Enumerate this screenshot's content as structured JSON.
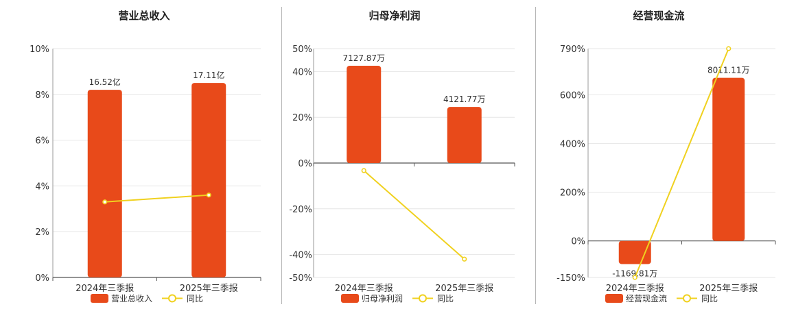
{
  "colors": {
    "bar": "#e84a1a",
    "line": "#f0d11f",
    "grid": "#e6e6e6",
    "axis": "#555555",
    "text": "#333333"
  },
  "chart_data": [
    {
      "type": "bar",
      "title": "营业总收入",
      "categories": [
        "2024年三季报",
        "2025年三季报"
      ],
      "series": [
        {
          "name": "营业总收入",
          "kind": "bar",
          "values": [
            8.2,
            8.5
          ],
          "labels": [
            "16.52亿",
            "17.11亿"
          ]
        },
        {
          "name": "同比",
          "kind": "line",
          "values": [
            3.3,
            3.6
          ]
        }
      ],
      "ylim": [
        0,
        10
      ],
      "yticks": [
        "10%",
        "8%",
        "6%",
        "4%",
        "2%",
        "0%"
      ],
      "ytick_values": [
        10,
        8,
        6,
        4,
        2,
        0
      ],
      "grid": true,
      "legend_position": "bottom"
    },
    {
      "type": "bar",
      "title": "归母净利润",
      "categories": [
        "2024年三季报",
        "2025年三季报"
      ],
      "series": [
        {
          "name": "归母净利润",
          "kind": "bar",
          "values": [
            42.5,
            24.5
          ],
          "labels": [
            "7127.87万",
            "4121.77万"
          ]
        },
        {
          "name": "同比",
          "kind": "line",
          "values": [
            -3.3,
            -42.0
          ]
        }
      ],
      "ylim": [
        -50,
        50
      ],
      "yticks": [
        "50%",
        "40%",
        "20%",
        "0%",
        "-20%",
        "-40%",
        "-50%"
      ],
      "ytick_values": [
        50,
        40,
        20,
        0,
        -20,
        -40,
        -50
      ],
      "grid": true,
      "legend_position": "bottom"
    },
    {
      "type": "bar",
      "title": "经营现金流",
      "categories": [
        "2024年三季报",
        "2025年三季报"
      ],
      "series": [
        {
          "name": "经营现金流",
          "kind": "bar",
          "values": [
            -95,
            670
          ],
          "labels": [
            "-1169.81万",
            "8011.11万"
          ]
        },
        {
          "name": "同比",
          "kind": "line",
          "values": [
            -150,
            790
          ]
        }
      ],
      "ylim": [
        -150,
        790
      ],
      "yticks": [
        "790%",
        "600%",
        "400%",
        "200%",
        "0%",
        "-150%"
      ],
      "ytick_values": [
        790,
        600,
        400,
        200,
        0,
        -150
      ],
      "grid": true,
      "legend_position": "bottom"
    }
  ]
}
